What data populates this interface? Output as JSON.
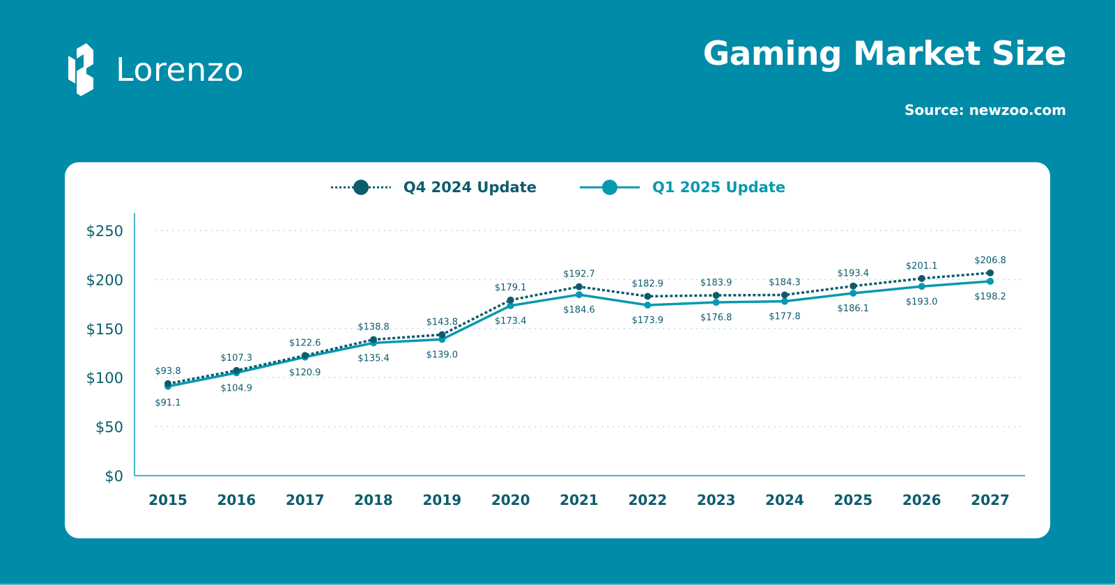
{
  "brand": {
    "name": "Lorenzo",
    "logo_icon": "lorenzo-logo-icon"
  },
  "header": {
    "title": "Gaming Market Size",
    "source": "Source: newzoo.com"
  },
  "colors": {
    "background": "#008ba8",
    "q4_series": "#0c5c6c",
    "q1_series": "#0799b0",
    "axis": "#0a9fb8",
    "gridline": "#b8dde4",
    "text_dark": "#0c5c6c"
  },
  "chart_data": {
    "type": "line",
    "title": "Gaming Market Size",
    "xlabel": "",
    "ylabel": "",
    "categories": [
      "2015",
      "2016",
      "2017",
      "2018",
      "2019",
      "2020",
      "2021",
      "2022",
      "2023",
      "2024",
      "2025",
      "2026",
      "2027"
    ],
    "y_ticks": [
      0,
      50,
      100,
      150,
      200,
      250
    ],
    "y_tick_labels": [
      "$0",
      "$50",
      "$100",
      "$150",
      "$200",
      "$250"
    ],
    "ylim": [
      0,
      250
    ],
    "grid": true,
    "legend_position": "top-center",
    "series": [
      {
        "name": "Q4 2024 Update",
        "style": "dotted",
        "values": [
          93.8,
          107.3,
          122.6,
          138.8,
          143.8,
          179.1,
          192.7,
          182.9,
          183.9,
          184.3,
          193.4,
          201.1,
          206.8
        ],
        "labels": [
          "$93.8",
          "$107.3",
          "$122.6",
          "$138.8",
          "$143.8",
          "$179.1",
          "$192.7",
          "$182.9",
          "$183.9",
          "$184.3",
          "$193.4",
          "$201.1",
          "$206.8"
        ]
      },
      {
        "name": "Q1 2025 Update",
        "style": "solid",
        "values": [
          91.1,
          104.9,
          120.9,
          135.4,
          139.0,
          173.4,
          184.6,
          173.9,
          176.8,
          177.8,
          186.1,
          193.0,
          198.2
        ],
        "labels": [
          "$91.1",
          "$104.9",
          "$120.9",
          "$135.4",
          "$139.0",
          "$173.4",
          "$184.6",
          "$173.9",
          "$176.8",
          "$177.8",
          "$186.1",
          "$193.0",
          "$198.2"
        ]
      }
    ]
  }
}
